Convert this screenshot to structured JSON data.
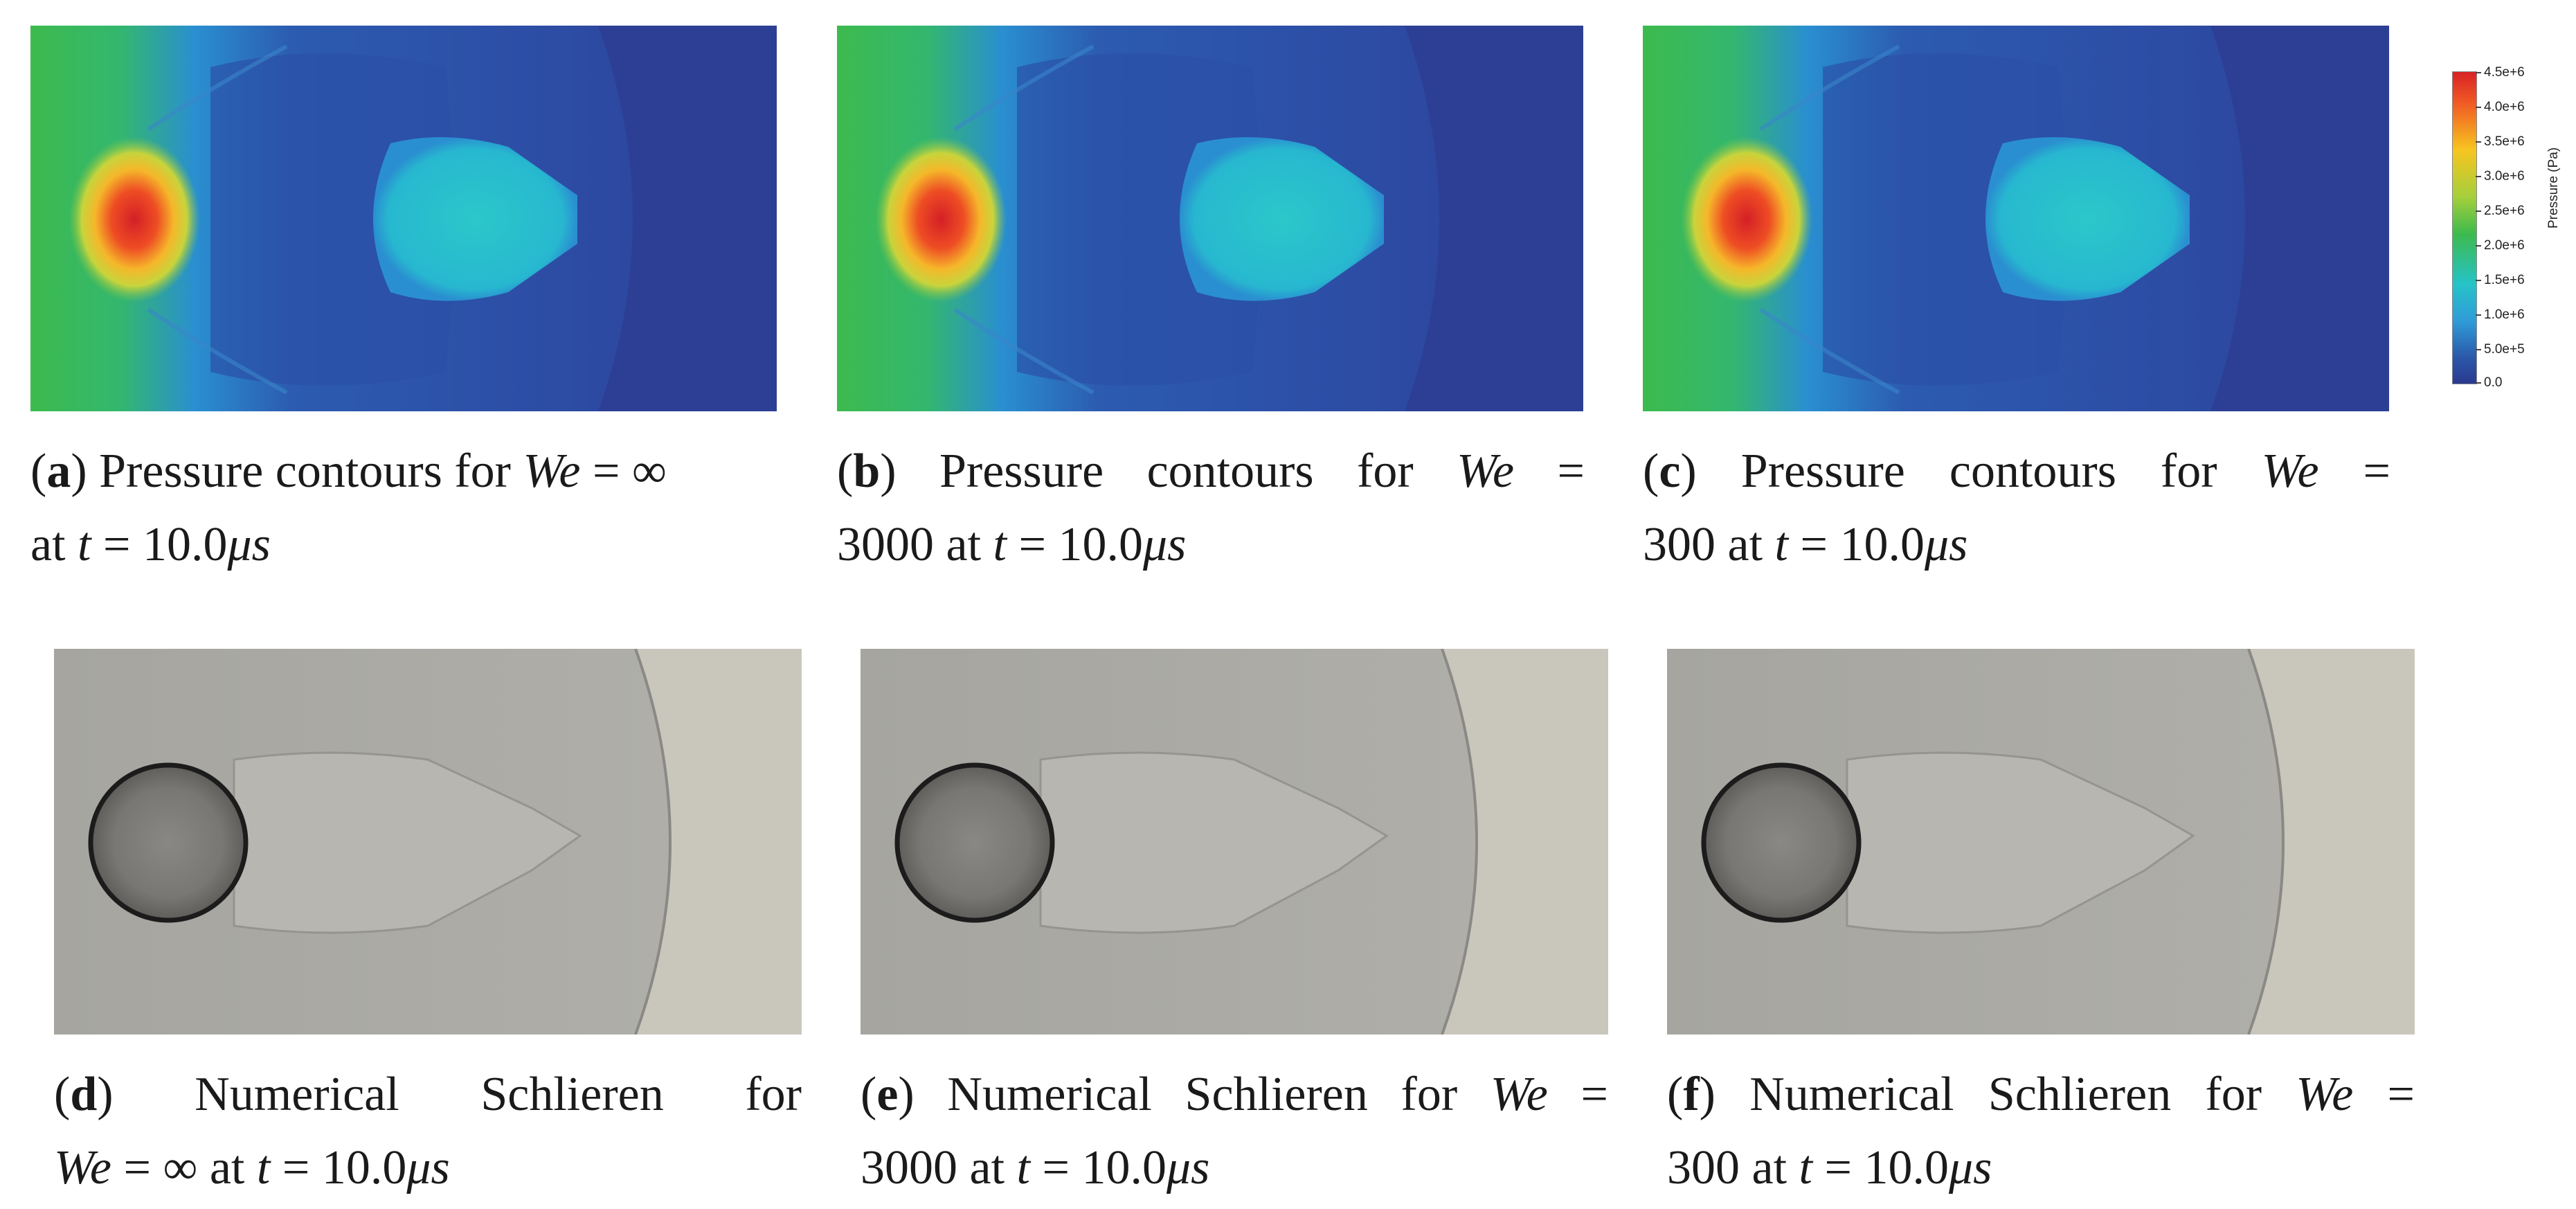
{
  "colorbar": {
    "title": "Pressure (Pa)",
    "ticks": [
      "4.5e+6",
      "4.0e+6",
      "3.5e+6",
      "3.0e+6",
      "2.5e+6",
      "2.0e+6",
      "1.5e+6",
      "1.0e+6",
      "5.0e+5",
      "0.0"
    ]
  },
  "captions": {
    "a": {
      "label": "a",
      "lead": "Pressure contours for",
      "we": "∞",
      "time": "10.0"
    },
    "b": {
      "label": "b",
      "lead": "Pressure contours for",
      "we": "3000",
      "time": "10.0"
    },
    "c": {
      "label": "c",
      "lead": "Pressure contours for",
      "we": "300",
      "time": "10.0"
    },
    "d": {
      "label": "d",
      "lead": "Numerical Schlieren for",
      "we": "∞",
      "time": "10.0"
    },
    "e": {
      "label": "e",
      "lead": "Numerical Schlieren for",
      "we": "3000",
      "time": "10.0"
    },
    "f": {
      "label": "f",
      "lead": "Numerical Schlieren for",
      "we": "300",
      "time": "10.0"
    }
  },
  "colors": {
    "pressure_high": "#d82226",
    "pressure_mid": "#26c3c8",
    "pressure_low": "#2e3f97",
    "far_field": "#3dba4e",
    "schlieren_bg": "#a9a8a2",
    "schlieren_light": "#c9c6bc",
    "droplet_edge": "#1c1c1c"
  }
}
